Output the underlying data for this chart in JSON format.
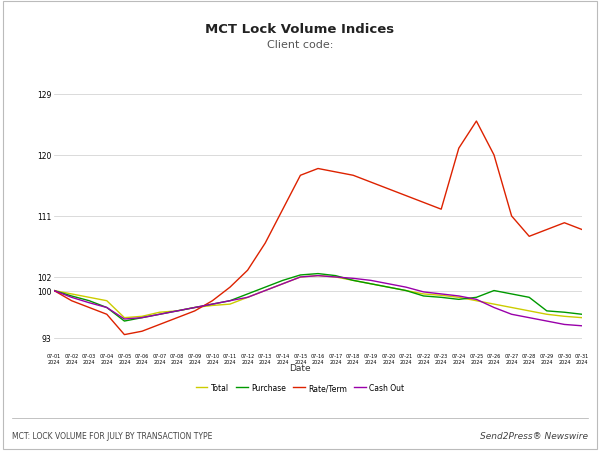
{
  "title": "MCT Lock Volume Indices",
  "subtitle": "Client code:",
  "xlabel": "Date",
  "ylim": [
    91,
    131
  ],
  "yticks": [
    93,
    100,
    102,
    111,
    120,
    129
  ],
  "footer_left": "MCT: LOCK VOLUME FOR JULY BY TRANSACTION TYPE",
  "footer_right": "Send2Press® Newswire",
  "legend_labels": [
    "Total",
    "Purchase",
    "Rate/Term",
    "Cash Out"
  ],
  "line_colors": [
    "#cccc00",
    "#009900",
    "#dd2200",
    "#9900aa"
  ],
  "dates": [
    "07-01",
    "07-02",
    "07-03",
    "07-04",
    "07-05",
    "07-06",
    "07-07",
    "07-08",
    "07-09",
    "07-10",
    "07-11",
    "07-12",
    "07-13",
    "07-14",
    "07-15",
    "07-16",
    "07-17",
    "07-18",
    "07-19",
    "07-20",
    "07-21",
    "07-22",
    "07-23",
    "07-24",
    "07-25",
    "07-26",
    "07-27",
    "07-28",
    "07-29",
    "07-30",
    "07-31"
  ],
  "total": [
    100,
    99.5,
    99,
    98.5,
    96,
    96.2,
    96.8,
    97,
    97.5,
    97.8,
    98,
    99,
    100,
    101,
    102,
    102.2,
    102,
    101.5,
    101,
    100.5,
    100,
    99.5,
    99.3,
    99,
    98.5,
    98,
    97.5,
    97,
    96.5,
    96.2,
    96
  ],
  "purchase": [
    100,
    99.2,
    98.5,
    97.5,
    95.5,
    96,
    96.5,
    97,
    97.5,
    98,
    98.5,
    99.5,
    100.5,
    101.5,
    102.3,
    102.5,
    102.2,
    101.5,
    101,
    100.5,
    100,
    99.2,
    99,
    98.7,
    99,
    100,
    99.5,
    99,
    97,
    96.8,
    96.5
  ],
  "rate_term": [
    100,
    98.5,
    97.5,
    96.5,
    93.5,
    94,
    95,
    96,
    97,
    98.5,
    100.5,
    103,
    107,
    112,
    117,
    118,
    117.5,
    117,
    116,
    115,
    114,
    113,
    112,
    121,
    125,
    120,
    111,
    108,
    109,
    110,
    109
  ],
  "cash_out": [
    100,
    99,
    98.2,
    97.5,
    95.8,
    96,
    96.5,
    97,
    97.5,
    98,
    98.5,
    99,
    100,
    101,
    102,
    102.2,
    102,
    101.8,
    101.5,
    101,
    100.5,
    99.8,
    99.5,
    99.2,
    98.7,
    97.5,
    96.5,
    96,
    95.5,
    95,
    94.8
  ],
  "background_color": "#ffffff",
  "grid_color": "#cccccc"
}
